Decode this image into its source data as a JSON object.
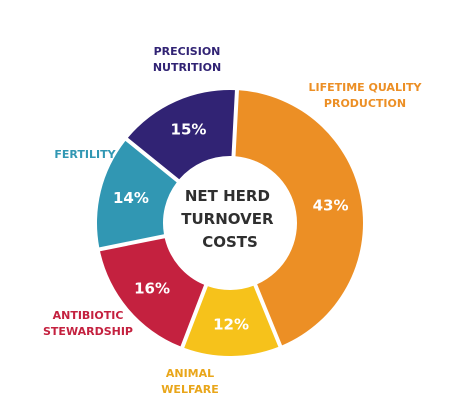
{
  "chart_data": {
    "type": "pie",
    "center_title_lines": [
      "NET HERD",
      "TURNOVER",
      "COSTS"
    ],
    "slices": [
      {
        "label_lines": [
          "LIFETIME QUALITY",
          "PRODUCTION"
        ],
        "value": 43,
        "value_label": "43%",
        "color": "#ec8f25"
      },
      {
        "label_lines": [
          "ANIMAL",
          "WELFARE"
        ],
        "value": 12,
        "value_label": "12%",
        "color": "#f6c21b"
      },
      {
        "label_lines": [
          "ANTIBIOTIC",
          "STEWARDSHIP"
        ],
        "value": 16,
        "value_label": "16%",
        "color": "#c4213f"
      },
      {
        "label_lines": [
          "FERTILITY"
        ],
        "value": 14,
        "value_label": "14%",
        "color": "#3197b3"
      },
      {
        "label_lines": [
          "PRECISION",
          "NUTRITION"
        ],
        "value": 15,
        "value_label": "15%",
        "color": "#312374"
      }
    ]
  }
}
